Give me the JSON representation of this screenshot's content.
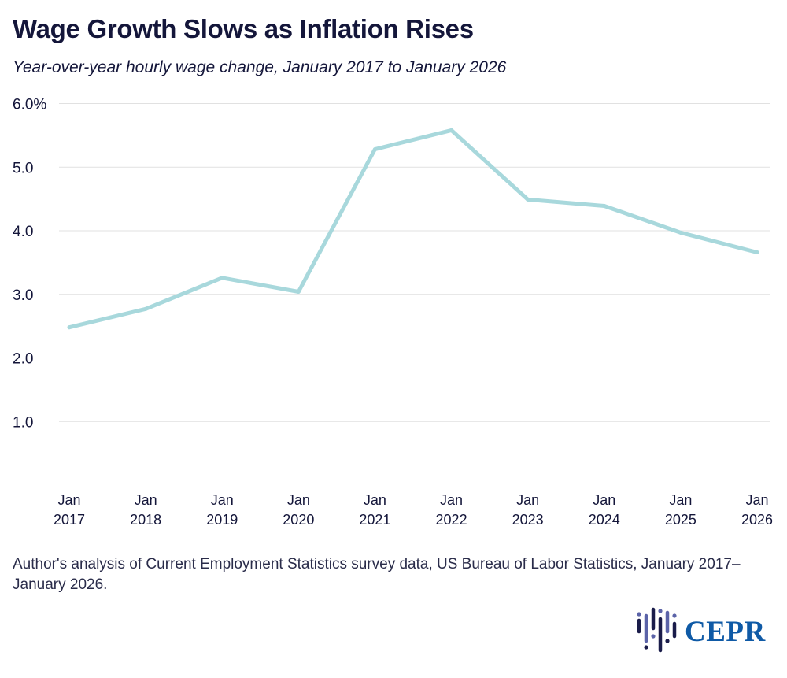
{
  "header": {
    "title": "Wage Growth Slows as Inflation Rises",
    "subtitle": "Year-over-year hourly wage change, January 2017 to January 2026"
  },
  "chart_data": {
    "type": "line",
    "x": [
      "Jan 2017",
      "Jan 2018",
      "Jan 2019",
      "Jan 2020",
      "Jan 2021",
      "Jan 2022",
      "Jan 2023",
      "Jan 2024",
      "Jan 2025",
      "Jan 2026"
    ],
    "x_tick_labels": [
      [
        "Jan",
        "2017"
      ],
      [
        "Jan",
        "2018"
      ],
      [
        "Jan",
        "2019"
      ],
      [
        "Jan",
        "2020"
      ],
      [
        "Jan",
        "2021"
      ],
      [
        "Jan",
        "2022"
      ],
      [
        "Jan",
        "2023"
      ],
      [
        "Jan",
        "2024"
      ],
      [
        "Jan",
        "2025"
      ],
      [
        "Jan",
        "2026"
      ]
    ],
    "series": [
      {
        "values": [
          2.48,
          2.77,
          3.26,
          3.04,
          5.28,
          5.58,
          4.49,
          4.39,
          3.97,
          3.66
        ]
      }
    ],
    "y_ticks": [
      1,
      2,
      3,
      4,
      5,
      6
    ],
    "y_tick_labels": [
      "1.0",
      "2.0",
      "3.0",
      "4.0",
      "5.0",
      "6.0%"
    ],
    "ylim": [
      0,
      6
    ],
    "grid": true,
    "line_color": "#a8d8dc",
    "grid_color": "#e1e1e1"
  },
  "source_note": "Author's analysis of Current Employment Statistics survey data, US Bureau of Labor Statistics, January 2017–January 2026.",
  "logo": {
    "text": "CEPR",
    "color": "#0f5aa6",
    "icon": "cepr-bars-logo-icon"
  }
}
